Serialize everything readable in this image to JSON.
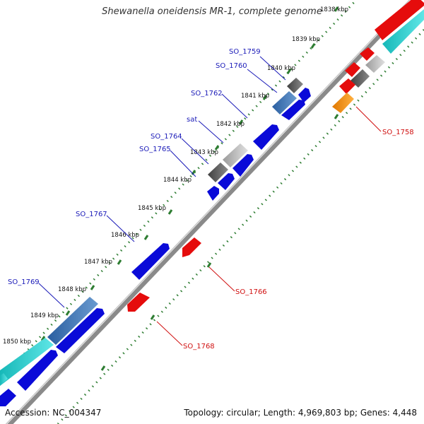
{
  "map": {
    "title": "Shewanella oneidensis MR-1, complete genome",
    "accession": "Accession: NC_004347",
    "summary": "Topology: circular; Length: 4,969,803 bp; Genes: 4,448"
  },
  "colors": {
    "forward_gene": "#0a0ad8",
    "reverse_gene": "#e50c0c",
    "backbone": "#8a8a8a",
    "tick_dots": "#2e7d32",
    "label_forward": "#1a1ab8",
    "label_reverse": "#d01010"
  },
  "ticks": [
    "1838 kbp",
    "1839 kbp",
    "1840 kbp",
    "1841 kbp",
    "1842 kbp",
    "1843 kbp",
    "1844 kbp",
    "1845 kbp",
    "1846 kbp",
    "1847 kbp",
    "1848 kbp",
    "1849 kbp",
    "1850 kbp"
  ],
  "labels": {
    "forward": [
      "SO_1759",
      "SO_1760",
      "SO_1762",
      "sat",
      "SO_1764",
      "SO_1765",
      "SO_1767",
      "SO_1769"
    ],
    "reverse": [
      "SO_1758",
      "SO_1766",
      "SO_1768"
    ]
  }
}
